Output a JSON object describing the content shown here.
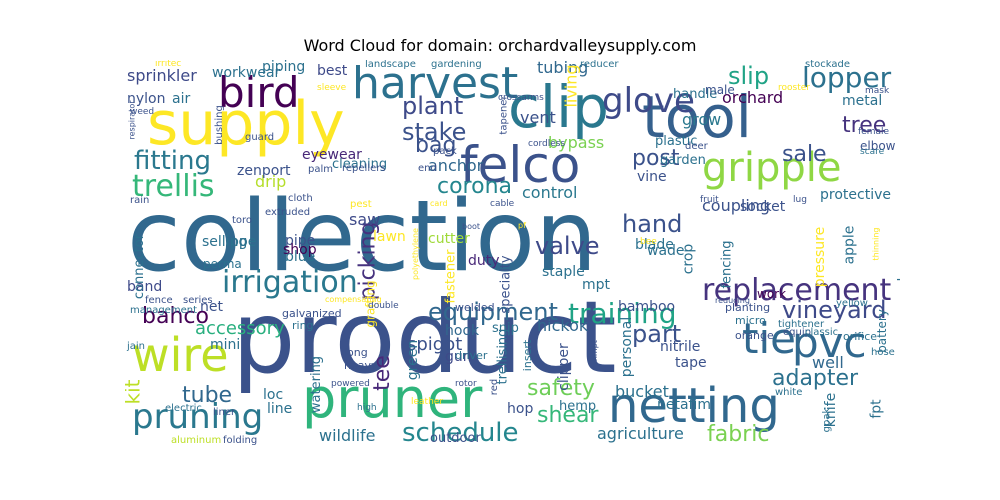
{
  "title": "Word Cloud for domain: orchardvalleysupply.com",
  "words": [
    {
      "text": "collection",
      "color": "#31688e"
    },
    {
      "text": "product",
      "color": "#3b528b"
    },
    {
      "text": "supply",
      "color": "#fde725"
    },
    {
      "text": "clip",
      "color": "#2a788e"
    },
    {
      "text": "tool",
      "color": "#35608d"
    },
    {
      "text": "harvest",
      "color": "#2c718e"
    },
    {
      "text": "felco",
      "color": "#3b528b"
    },
    {
      "text": "pruner",
      "color": "#2fb47c"
    },
    {
      "text": "netting",
      "color": "#31688e"
    },
    {
      "text": "wire",
      "color": "#bddf26"
    },
    {
      "text": "tie",
      "color": "#31688e"
    },
    {
      "text": "pvc",
      "color": "#31688e"
    },
    {
      "text": "gripple",
      "color": "#8fd744"
    },
    {
      "text": "glove",
      "color": "#3e4a89"
    },
    {
      "text": "bird",
      "color": "#440154"
    },
    {
      "text": "irrigation",
      "color": "#2a788e"
    },
    {
      "text": "replacement",
      "color": "#46337e"
    },
    {
      "text": "pruning",
      "color": "#2a788e"
    },
    {
      "text": "lopper",
      "color": "#2c718e"
    },
    {
      "text": "trellis",
      "color": "#35b779"
    },
    {
      "text": "fitting",
      "color": "#2a788e"
    },
    {
      "text": "training",
      "color": "#20a386"
    },
    {
      "text": "schedule",
      "color": "#24868e"
    },
    {
      "text": "equipment",
      "color": "#31688e"
    },
    {
      "text": "plant",
      "color": "#3e4a89"
    },
    {
      "text": "stake",
      "color": "#3b528b"
    },
    {
      "text": "slip",
      "color": "#20a386"
    },
    {
      "text": "vineyard",
      "color": "#3e4a89"
    },
    {
      "text": "adapter",
      "color": "#2c718e"
    },
    {
      "text": "safety",
      "color": "#6ece58"
    },
    {
      "text": "hand",
      "color": "#3b528b"
    },
    {
      "text": "valve",
      "color": "#3e4a89"
    },
    {
      "text": "part",
      "color": "#3b528b"
    },
    {
      "text": "tube",
      "color": "#31688e"
    },
    {
      "text": "bahco",
      "color": "#440154"
    },
    {
      "text": "shear",
      "color": "#35b779"
    },
    {
      "text": "post",
      "color": "#3b528b"
    },
    {
      "text": "fabric",
      "color": "#7ad151"
    },
    {
      "text": "corona",
      "color": "#24868e"
    },
    {
      "text": "picking",
      "color": "#46327e"
    },
    {
      "text": "sale",
      "color": "#3b528b"
    },
    {
      "text": "tree",
      "color": "#46337e"
    },
    {
      "text": "tee",
      "color": "#482878"
    },
    {
      "text": "bag",
      "color": "#3b528b"
    },
    {
      "text": "kit",
      "color": "#bddf26"
    },
    {
      "text": "accessory",
      "color": "#29af7f"
    },
    {
      "text": "wildlife",
      "color": "#2c718e"
    },
    {
      "text": "agriculture",
      "color": "#2c718e"
    },
    {
      "text": "sprinkler",
      "color": "#3e4a89"
    },
    {
      "text": "tubing",
      "color": "#31688e"
    },
    {
      "text": "bypass",
      "color": "#7ad151"
    },
    {
      "text": "coupling",
      "color": "#3b528b"
    },
    {
      "text": "control",
      "color": "#2a788e"
    },
    {
      "text": "hickok",
      "color": "#31688e"
    },
    {
      "text": "bucket",
      "color": "#2c718e"
    },
    {
      "text": "drip",
      "color": "#b5de2b"
    },
    {
      "text": "hook",
      "color": "#31688e"
    },
    {
      "text": "well",
      "color": "#31688e"
    },
    {
      "text": "vent",
      "color": "#3b528b"
    },
    {
      "text": "living",
      "color": "#fde725"
    },
    {
      "text": "orchard",
      "color": "#440154"
    },
    {
      "text": "grow",
      "color": "#2a788e"
    },
    {
      "text": "anchor",
      "color": "#31688e"
    },
    {
      "text": "workwear",
      "color": "#2c718e"
    },
    {
      "text": "piping",
      "color": "#2c718e"
    },
    {
      "text": "metal",
      "color": "#2c718e"
    },
    {
      "text": "air",
      "color": "#2c718e"
    },
    {
      "text": "nylon",
      "color": "#3b528b"
    },
    {
      "text": "best",
      "color": "#3e4a89"
    },
    {
      "text": "eyewear",
      "color": "#482878"
    },
    {
      "text": "zenport",
      "color": "#3b528b"
    },
    {
      "text": "saw",
      "color": "#3e4a89"
    },
    {
      "text": "cutter",
      "color": "#a0da39"
    },
    {
      "text": "selling",
      "color": "#2c718e"
    },
    {
      "text": "pipe",
      "color": "#3b528b"
    },
    {
      "text": "blue",
      "color": "#2c718e"
    },
    {
      "text": "ppe",
      "color": "#2c718e"
    },
    {
      "text": "shop",
      "color": "#440154"
    },
    {
      "text": "lawn",
      "color": "#fde725"
    },
    {
      "text": "duty",
      "color": "#482878"
    },
    {
      "text": "staple",
      "color": "#2c718e"
    },
    {
      "text": "mpt",
      "color": "#2c718e"
    },
    {
      "text": "wade",
      "color": "#2c718e"
    },
    {
      "text": "crop",
      "color": "#2c718e"
    },
    {
      "text": "socket",
      "color": "#3b528b"
    },
    {
      "text": "protective",
      "color": "#2c718e"
    },
    {
      "text": "apple",
      "color": "#2c718e"
    },
    {
      "text": "pressure",
      "color": "#fde725"
    },
    {
      "text": "clearance",
      "color": "#2c718e"
    },
    {
      "text": "net",
      "color": "#3b528b"
    },
    {
      "text": "band",
      "color": "#3e4a89"
    },
    {
      "text": "mini",
      "color": "#2c718e"
    },
    {
      "text": "bamboo",
      "color": "#3b528b"
    },
    {
      "text": "connector",
      "color": "#2c718e"
    },
    {
      "text": "spigot",
      "color": "#3b528b"
    },
    {
      "text": "green",
      "color": "#2c718e"
    },
    {
      "text": "personal",
      "color": "#2c718e"
    },
    {
      "text": "nitrile",
      "color": "#3b528b"
    },
    {
      "text": "tape",
      "color": "#3b528b"
    },
    {
      "text": "loc",
      "color": "#2c718e"
    },
    {
      "text": "line",
      "color": "#2c718e"
    },
    {
      "text": "watering",
      "color": "#2c718e"
    },
    {
      "text": "hop",
      "color": "#3b528b"
    },
    {
      "text": "netafim",
      "color": "#2c718e"
    },
    {
      "text": "knife",
      "color": "#2c718e"
    },
    {
      "text": "fpt",
      "color": "#2c718e"
    },
    {
      "text": "outdoor",
      "color": "#3b528b"
    },
    {
      "text": "hemp",
      "color": "#2c718e"
    },
    {
      "text": "clipper",
      "color": "#3b528b"
    },
    {
      "text": "trellising",
      "color": "#2c718e"
    },
    {
      "text": "snip",
      "color": "#2c718e"
    },
    {
      "text": "specialty",
      "color": "#3b528b"
    },
    {
      "text": "gun",
      "color": "#3e4a89"
    },
    {
      "text": "fastener",
      "color": "#fde725"
    },
    {
      "text": "blade",
      "color": "#2c718e"
    },
    {
      "text": "fencing",
      "color": "#2c718e"
    },
    {
      "text": "vine",
      "color": "#3b528b"
    },
    {
      "text": "handle",
      "color": "#2c718e"
    },
    {
      "text": "garden",
      "color": "#2c718e"
    },
    {
      "text": "plastic",
      "color": "#2c718e"
    },
    {
      "text": "male",
      "color": "#3b528b"
    },
    {
      "text": "cleaning",
      "color": "#2c718e"
    },
    {
      "text": "elbow",
      "color": "#3b528b"
    },
    {
      "text": "battery",
      "color": "#2c718e"
    },
    {
      "text": "grafting",
      "color": "#fde725"
    },
    {
      "text": "perma",
      "color": "#2c718e"
    },
    {
      "text": "work",
      "color": "#440154"
    },
    {
      "text": "ring",
      "color": "#2c718e"
    },
    {
      "text": "long",
      "color": "#3b528b"
    },
    {
      "text": "heavy",
      "color": "#3b528b"
    },
    {
      "text": "galvanized",
      "color": "#3b528b"
    },
    {
      "text": "welded",
      "color": "#3b528b"
    },
    {
      "text": "driver",
      "color": "#2c718e"
    },
    {
      "text": "insert",
      "color": "#2c718e"
    },
    {
      "text": "planting",
      "color": "#3b528b"
    },
    {
      "text": "micro",
      "color": "#2c718e"
    },
    {
      "text": "tightener",
      "color": "#2c718e"
    },
    {
      "text": "orange",
      "color": "#3b528b"
    },
    {
      "text": "equip",
      "color": "#3b528b"
    },
    {
      "text": "classic",
      "color": "#2c718e"
    },
    {
      "text": "orifice",
      "color": "#2c718e"
    },
    {
      "text": "hose",
      "color": "#2c718e"
    },
    {
      "text": "gpak",
      "color": "#2c718e"
    },
    {
      "text": "white",
      "color": "#2c718e"
    },
    {
      "text": "yellow",
      "color": "#2c718e"
    },
    {
      "text": "series",
      "color": "#3b528b"
    },
    {
      "text": "fence",
      "color": "#3b528b"
    },
    {
      "text": "management",
      "color": "#2c718e"
    },
    {
      "text": "jain",
      "color": "#2c718e"
    },
    {
      "text": "electric",
      "color": "#2c718e"
    },
    {
      "text": "aluminum",
      "color": "#bddf26"
    },
    {
      "text": "folding",
      "color": "#3b528b"
    },
    {
      "text": "liner",
      "color": "#3b528b"
    },
    {
      "text": "powered",
      "color": "#3b528b"
    },
    {
      "text": "high",
      "color": "#2c718e"
    },
    {
      "text": "leather",
      "color": "#fde725"
    },
    {
      "text": "rotor",
      "color": "#3b528b"
    },
    {
      "text": "red",
      "color": "#3b528b"
    },
    {
      "text": "landscape",
      "color": "#2c718e"
    },
    {
      "text": "gardening",
      "color": "#2c718e"
    },
    {
      "text": "reducer",
      "color": "#2c718e"
    },
    {
      "text": "stockade",
      "color": "#2c718e"
    },
    {
      "text": "rooster",
      "color": "#fde725"
    },
    {
      "text": "mask",
      "color": "#3b528b"
    },
    {
      "text": "female",
      "color": "#3b528b"
    },
    {
      "text": "scare",
      "color": "#2c718e"
    },
    {
      "text": "tapener",
      "color": "#3b528b"
    },
    {
      "text": "crossarms",
      "color": "#3b528b"
    },
    {
      "text": "cordless",
      "color": "#3b528b"
    },
    {
      "text": "deer",
      "color": "#3b528b"
    },
    {
      "text": "pack",
      "color": "#3b528b"
    },
    {
      "text": "end",
      "color": "#3b528b"
    },
    {
      "text": "guard",
      "color": "#3b528b"
    },
    {
      "text": "palm",
      "color": "#3b528b"
    },
    {
      "text": "repellers",
      "color": "#3b528b"
    },
    {
      "text": "cloth",
      "color": "#3b528b"
    },
    {
      "text": "extruded",
      "color": "#3b528b"
    },
    {
      "text": "toro",
      "color": "#3b528b"
    },
    {
      "text": "rain",
      "color": "#3b528b"
    },
    {
      "text": "pest",
      "color": "#fde725"
    },
    {
      "text": "irritec",
      "color": "#fde725"
    },
    {
      "text": "weed",
      "color": "#3b528b"
    },
    {
      "text": "bushing",
      "color": "#3b528b"
    },
    {
      "text": "respirator",
      "color": "#3b528b"
    },
    {
      "text": "sleeve",
      "color": "#fde725"
    },
    {
      "text": "fruit",
      "color": "#3b528b"
    },
    {
      "text": "lug",
      "color": "#3b528b"
    },
    {
      "text": "cable",
      "color": "#3b528b"
    },
    {
      "text": "bee",
      "color": "#fde725"
    },
    {
      "text": "double",
      "color": "#3b528b"
    },
    {
      "text": "compensating",
      "color": "#fde725"
    },
    {
      "text": "reducing",
      "color": "#3b528b"
    },
    {
      "text": "thinning",
      "color": "#fde725"
    },
    {
      "text": "boot",
      "color": "#3b528b"
    },
    {
      "text": "pf",
      "color": "#fde725"
    },
    {
      "text": "polyethylene",
      "color": "#fde725"
    },
    {
      "text": "mmpt",
      "color": "#3b528b"
    },
    {
      "text": "card",
      "color": "#fde725"
    }
  ]
}
